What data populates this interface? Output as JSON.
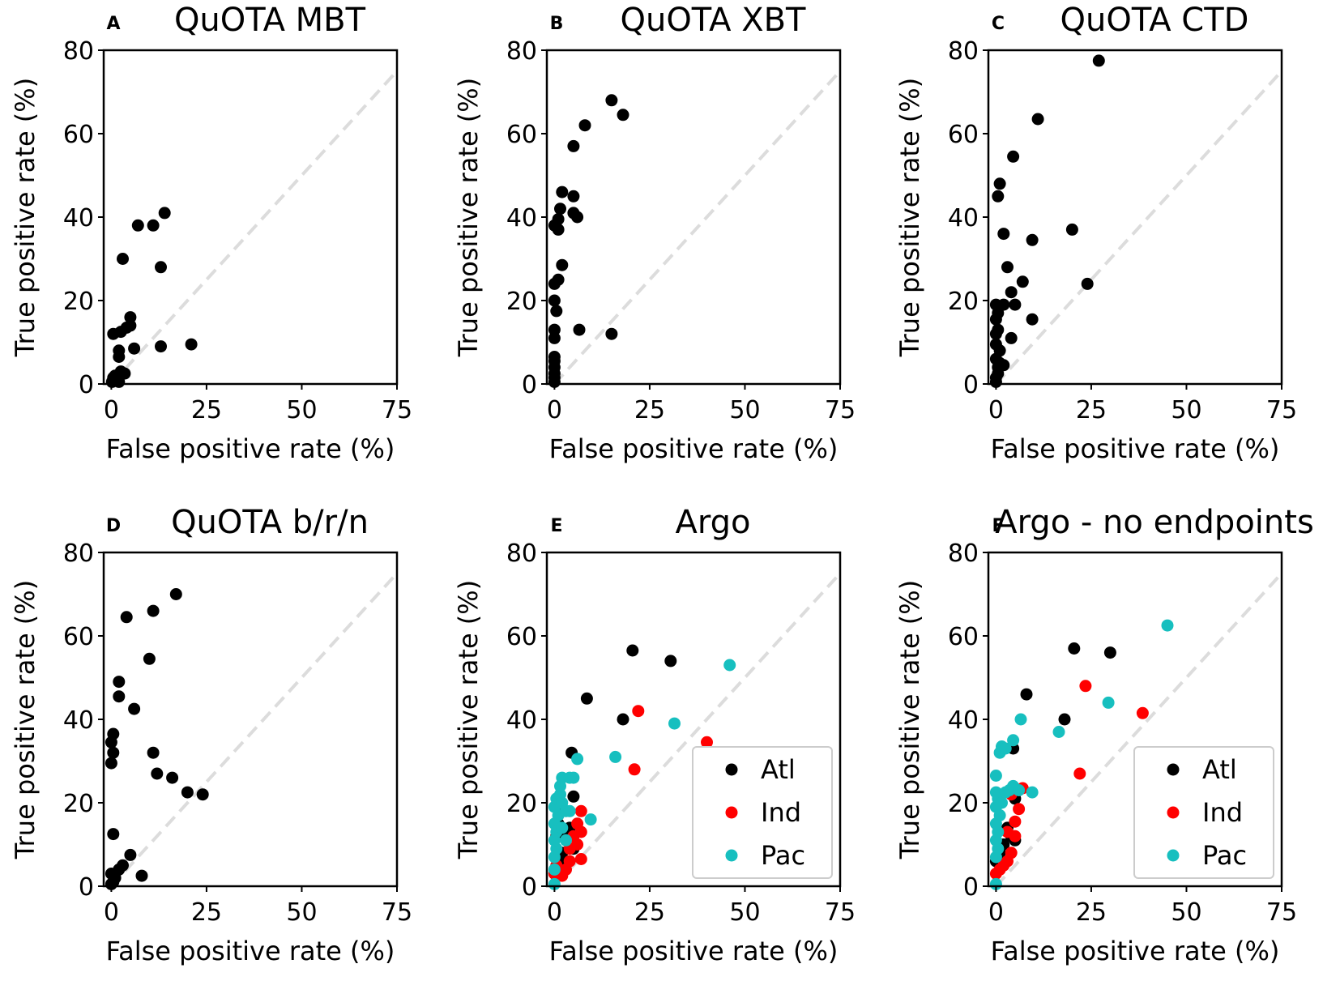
{
  "figure": {
    "colors": {
      "Atl": "#000000",
      "Ind": "#ff0000",
      "Pac": "#17bfbf",
      "diagonal": "#dcdcdc",
      "axis": "#000000"
    },
    "legend_placement": "lower-right"
  },
  "chart_data": [
    {
      "type": "scatter",
      "letter": "A",
      "title": "QuOTA MBT",
      "xlabel": "False positive rate (%)",
      "ylabel": "True positive rate (%)",
      "xlim": [
        -2,
        75
      ],
      "ylim": [
        0,
        80
      ],
      "xticks": [
        "0",
        "25",
        "50",
        "75"
      ],
      "yticks": [
        "0",
        "20",
        "40",
        "60",
        "80"
      ],
      "diagonal": true,
      "legend": [],
      "series": [
        {
          "name": "",
          "key": "Atl",
          "points": [
            [
              0.2,
              0.5
            ],
            [
              0.5,
              1.5
            ],
            [
              1,
              2
            ],
            [
              0.8,
              0.8
            ],
            [
              1.5,
              1
            ],
            [
              2,
              0.5
            ],
            [
              0.5,
              12
            ],
            [
              2.5,
              12.5
            ],
            [
              4,
              13.5
            ],
            [
              5,
              14
            ],
            [
              5,
              16
            ],
            [
              2,
              8
            ],
            [
              2,
              6.5
            ],
            [
              2.5,
              3
            ],
            [
              3.5,
              2.5
            ],
            [
              3,
              30
            ],
            [
              7,
              38
            ],
            [
              11,
              38
            ],
            [
              14,
              41
            ],
            [
              13,
              28
            ],
            [
              6,
              8.5
            ],
            [
              13,
              9
            ],
            [
              21,
              9.5
            ]
          ]
        }
      ]
    },
    {
      "type": "scatter",
      "letter": "B",
      "title": "QuOTA XBT",
      "xlabel": "False positive rate (%)",
      "ylabel": "True positive rate (%)",
      "xlim": [
        -2,
        75
      ],
      "ylim": [
        0,
        80
      ],
      "xticks": [
        "0",
        "25",
        "50",
        "75"
      ],
      "yticks": [
        "0",
        "20",
        "40",
        "60",
        "80"
      ],
      "diagonal": true,
      "legend": [],
      "series": [
        {
          "name": "",
          "key": "Atl",
          "points": [
            [
              0,
              0.5
            ],
            [
              0,
              1.5
            ],
            [
              0,
              2.5
            ],
            [
              0,
              4
            ],
            [
              0,
              5.5
            ],
            [
              0,
              6.5
            ],
            [
              0,
              11
            ],
            [
              0,
              13
            ],
            [
              0.5,
              17.5
            ],
            [
              0,
              20
            ],
            [
              0,
              24
            ],
            [
              1,
              25
            ],
            [
              2,
              28.5
            ],
            [
              0,
              38
            ],
            [
              1,
              37
            ],
            [
              1,
              39.5
            ],
            [
              1.5,
              42
            ],
            [
              2,
              46
            ],
            [
              5,
              45
            ],
            [
              5,
              41
            ],
            [
              6,
              40
            ],
            [
              5,
              57
            ],
            [
              8,
              62
            ],
            [
              15,
              68
            ],
            [
              18,
              64.5
            ],
            [
              6.5,
              13
            ],
            [
              15,
              12
            ]
          ]
        }
      ]
    },
    {
      "type": "scatter",
      "letter": "C",
      "title": "QuOTA CTD",
      "xlabel": "False positive rate (%)",
      "ylabel": "True positive rate (%)",
      "xlim": [
        -2,
        75
      ],
      "ylim": [
        0,
        80
      ],
      "xticks": [
        "0",
        "25",
        "50",
        "75"
      ],
      "yticks": [
        "0",
        "20",
        "40",
        "60",
        "80"
      ],
      "diagonal": true,
      "legend": [],
      "series": [
        {
          "name": "",
          "key": "Atl",
          "points": [
            [
              0,
              0.5
            ],
            [
              0,
              1.5
            ],
            [
              0.5,
              2.5
            ],
            [
              0.5,
              4
            ],
            [
              0,
              6
            ],
            [
              1,
              5
            ],
            [
              2,
              4.5
            ],
            [
              0,
              9.5
            ],
            [
              1,
              8
            ],
            [
              0,
              12
            ],
            [
              0.5,
              13
            ],
            [
              0,
              15.5
            ],
            [
              0.5,
              17
            ],
            [
              0,
              19
            ],
            [
              2,
              19
            ],
            [
              3,
              28
            ],
            [
              4,
              22
            ],
            [
              5,
              19
            ],
            [
              7,
              24.5
            ],
            [
              4,
              11
            ],
            [
              9.5,
              15.5
            ],
            [
              9.5,
              34.5
            ],
            [
              2,
              36
            ],
            [
              0.5,
              45
            ],
            [
              1,
              48
            ],
            [
              4.5,
              54.5
            ],
            [
              11,
              63.5
            ],
            [
              20,
              37
            ],
            [
              24,
              24
            ],
            [
              27,
              77.5
            ]
          ]
        }
      ]
    },
    {
      "type": "scatter",
      "letter": "D",
      "title": "QuOTA b/r/n",
      "xlabel": "False positive rate (%)",
      "ylabel": "True positive rate (%)",
      "xlim": [
        -2,
        75
      ],
      "ylim": [
        0,
        80
      ],
      "xticks": [
        "0",
        "25",
        "50",
        "75"
      ],
      "yticks": [
        "0",
        "20",
        "40",
        "60",
        "80"
      ],
      "diagonal": true,
      "legend": [],
      "series": [
        {
          "name": "",
          "key": "Atl",
          "points": [
            [
              0,
              0.5
            ],
            [
              0.5,
              1
            ],
            [
              1,
              2
            ],
            [
              0,
              3
            ],
            [
              2,
              4
            ],
            [
              3,
              5
            ],
            [
              5,
              7.5
            ],
            [
              8,
              2.5
            ],
            [
              0.5,
              12.5
            ],
            [
              0,
              29.5
            ],
            [
              0.5,
              32
            ],
            [
              0,
              34.5
            ],
            [
              0.5,
              36.5
            ],
            [
              2,
              49
            ],
            [
              2,
              45.5
            ],
            [
              4,
              64.5
            ],
            [
              6,
              42.5
            ],
            [
              10,
              54.5
            ],
            [
              11,
              66
            ],
            [
              17,
              70
            ],
            [
              11,
              32
            ],
            [
              12,
              27
            ],
            [
              16,
              26
            ],
            [
              20,
              22.5
            ],
            [
              24,
              22
            ]
          ]
        }
      ]
    },
    {
      "type": "scatter",
      "letter": "E",
      "title": "Argo",
      "xlabel": "False positive rate (%)",
      "ylabel": "True positive rate (%)",
      "xlim": [
        -2,
        75
      ],
      "ylim": [
        0,
        80
      ],
      "xticks": [
        "0",
        "25",
        "50",
        "75"
      ],
      "yticks": [
        "0",
        "20",
        "40",
        "60",
        "80"
      ],
      "diagonal": true,
      "legend": [
        "Atl",
        "Ind",
        "Pac"
      ],
      "series": [
        {
          "name": "Atl",
          "key": "Atl",
          "points": [
            [
              0,
              3
            ],
            [
              1,
              5
            ],
            [
              2,
              8
            ],
            [
              0.5,
              12
            ],
            [
              1,
              15
            ],
            [
              1.5,
              18
            ],
            [
              3,
              13
            ],
            [
              4,
              14
            ],
            [
              3,
              6
            ],
            [
              5,
              9
            ],
            [
              5,
              21.5
            ],
            [
              4.5,
              32
            ],
            [
              8.5,
              45
            ],
            [
              18,
              40
            ],
            [
              20.5,
              56.5
            ],
            [
              30.5,
              54
            ]
          ]
        },
        {
          "name": "Ind",
          "key": "Ind",
          "points": [
            [
              0,
              3
            ],
            [
              0.5,
              5
            ],
            [
              1.5,
              3
            ],
            [
              2,
              2.5
            ],
            [
              3,
              4
            ],
            [
              4,
              6
            ],
            [
              4,
              9
            ],
            [
              5,
              12
            ],
            [
              6,
              10
            ],
            [
              6,
              15
            ],
            [
              7,
              13
            ],
            [
              7,
              18
            ],
            [
              7,
              6.5
            ],
            [
              21,
              28
            ],
            [
              22,
              42
            ],
            [
              40,
              34.5
            ]
          ]
        },
        {
          "name": "Pac",
          "key": "Pac",
          "points": [
            [
              0,
              0.5
            ],
            [
              0,
              4
            ],
            [
              0,
              7
            ],
            [
              0.5,
              9
            ],
            [
              0,
              11
            ],
            [
              0.5,
              13
            ],
            [
              0,
              15
            ],
            [
              1,
              17
            ],
            [
              0,
              19
            ],
            [
              0.5,
              21
            ],
            [
              1.5,
              22
            ],
            [
              1.5,
              24
            ],
            [
              2,
              26
            ],
            [
              2,
              20
            ],
            [
              3,
              18
            ],
            [
              4,
              18
            ],
            [
              4,
              26
            ],
            [
              5,
              26
            ],
            [
              3,
              11
            ],
            [
              2,
              14
            ],
            [
              6,
              30.5
            ],
            [
              9.5,
              16
            ],
            [
              16,
              31
            ],
            [
              31.5,
              39
            ],
            [
              46,
              53
            ]
          ]
        }
      ]
    },
    {
      "type": "scatter",
      "letter": "F",
      "title": "Argo - no endpoints",
      "xlabel": "False positive rate (%)",
      "ylabel": "True positive rate (%)",
      "xlim": [
        -2,
        75
      ],
      "ylim": [
        0,
        80
      ],
      "xticks": [
        "0",
        "25",
        "50",
        "75"
      ],
      "yticks": [
        "0",
        "20",
        "40",
        "60",
        "80"
      ],
      "diagonal": true,
      "legend": [
        "Atl",
        "Ind",
        "Pac"
      ],
      "series": [
        {
          "name": "Atl",
          "key": "Atl",
          "points": [
            [
              0,
              6
            ],
            [
              1,
              8
            ],
            [
              2,
              10
            ],
            [
              3,
              14
            ],
            [
              4,
              12
            ],
            [
              5,
              11
            ],
            [
              5,
              21
            ],
            [
              4.5,
              33
            ],
            [
              8,
              46
            ],
            [
              18,
              40
            ],
            [
              20.5,
              57
            ],
            [
              30,
              56
            ]
          ]
        },
        {
          "name": "Ind",
          "key": "Ind",
          "points": [
            [
              0,
              3
            ],
            [
              1,
              4
            ],
            [
              2,
              5
            ],
            [
              3,
              6
            ],
            [
              4,
              8
            ],
            [
              5,
              12
            ],
            [
              5,
              15.5
            ],
            [
              6,
              18.5
            ],
            [
              7,
              23.5
            ],
            [
              4,
              22
            ],
            [
              3,
              13
            ],
            [
              23.5,
              48
            ],
            [
              22,
              27
            ],
            [
              38.5,
              41.5
            ]
          ]
        },
        {
          "name": "Pac",
          "key": "Pac",
          "points": [
            [
              0,
              0.5
            ],
            [
              0,
              7
            ],
            [
              0.5,
              9
            ],
            [
              0,
              11
            ],
            [
              0.5,
              13
            ],
            [
              0,
              15
            ],
            [
              1,
              17
            ],
            [
              0,
              19
            ],
            [
              0.5,
              21
            ],
            [
              0,
              22.5
            ],
            [
              1.5,
              20
            ],
            [
              2.5,
              22.5
            ],
            [
              3.5,
              23
            ],
            [
              4.5,
              24
            ],
            [
              6,
              23
            ],
            [
              9.5,
              22.5
            ],
            [
              0,
              26.5
            ],
            [
              1,
              32
            ],
            [
              1.5,
              33.5
            ],
            [
              2.5,
              33
            ],
            [
              4.5,
              35
            ],
            [
              6.5,
              40
            ],
            [
              16.5,
              37
            ],
            [
              29.5,
              44
            ],
            [
              45,
              62.5
            ]
          ]
        }
      ]
    }
  ]
}
